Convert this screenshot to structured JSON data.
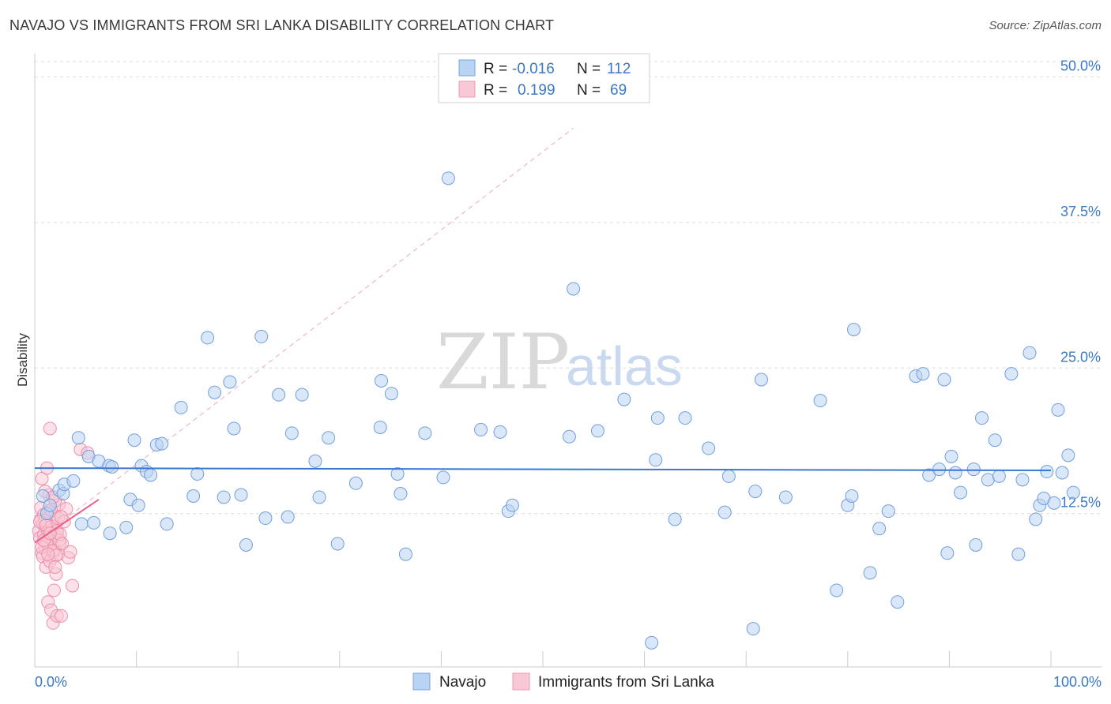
{
  "title": "NAVAJO VS IMMIGRANTS FROM SRI LANKA DISABILITY CORRELATION CHART",
  "source": "Source: ZipAtlas.com",
  "watermark": {
    "part1": "ZIP",
    "part2": "atlas"
  },
  "chart_data": {
    "type": "scatter",
    "title": "NAVAJO VS IMMIGRANTS FROM SRI LANKA DISABILITY CORRELATION CHART",
    "xlabel": "",
    "ylabel": "Disability",
    "xlim": [
      0,
      100
    ],
    "ylim": [
      0,
      52
    ],
    "x_tick_labels": [
      "0.0%",
      "100.0%"
    ],
    "y_ticks": [
      12.5,
      25.0,
      37.5,
      50.0
    ],
    "y_tick_labels": [
      "12.5%",
      "25.0%",
      "37.5%",
      "50.0%"
    ],
    "grid": true,
    "legend_position": "top-center",
    "colors": {
      "navajo": "#a8c8f0",
      "navajo_line": "#3a78d0",
      "srilanka": "#f5b7c8",
      "srilanka_line": "#e8628c",
      "tick_text": "#3b78c4"
    },
    "legend": [
      {
        "name": "Navajo",
        "r_label": "R = ",
        "r": "-0.016",
        "n_label": "N = ",
        "n": "112"
      },
      {
        "name": "Immigrants from Sri Lanka",
        "r_label": "R = ",
        "r": " 0.199",
        "n_label": "N = ",
        "n": "69"
      }
    ],
    "series": [
      {
        "name": "Navajo",
        "trend": {
          "x": [
            0,
            100
          ],
          "y": [
            16.4,
            16.2
          ]
        },
        "points": [
          [
            0.8,
            14.0
          ],
          [
            1.2,
            12.5
          ],
          [
            1.5,
            13.2
          ],
          [
            2.4,
            14.5
          ],
          [
            2.8,
            14.2
          ],
          [
            2.9,
            15.0
          ],
          [
            3.8,
            15.3
          ],
          [
            4.3,
            19.0
          ],
          [
            4.6,
            11.6
          ],
          [
            5.3,
            17.4
          ],
          [
            5.8,
            11.7
          ],
          [
            6.3,
            17.0
          ],
          [
            7.3,
            16.6
          ],
          [
            7.6,
            16.5
          ],
          [
            7.4,
            10.8
          ],
          [
            9.0,
            11.3
          ],
          [
            9.4,
            13.7
          ],
          [
            9.8,
            18.8
          ],
          [
            10.2,
            13.2
          ],
          [
            10.5,
            16.6
          ],
          [
            11.0,
            16.1
          ],
          [
            11.4,
            15.8
          ],
          [
            12.0,
            18.4
          ],
          [
            12.5,
            18.5
          ],
          [
            13.0,
            11.6
          ],
          [
            14.4,
            21.6
          ],
          [
            15.6,
            14.0
          ],
          [
            16.0,
            15.9
          ],
          [
            17.0,
            27.6
          ],
          [
            17.7,
            22.9
          ],
          [
            18.6,
            13.9
          ],
          [
            19.2,
            23.8
          ],
          [
            19.6,
            19.8
          ],
          [
            20.3,
            14.1
          ],
          [
            20.8,
            9.8
          ],
          [
            22.3,
            27.7
          ],
          [
            22.7,
            12.1
          ],
          [
            24.0,
            22.7
          ],
          [
            24.9,
            12.2
          ],
          [
            25.3,
            19.4
          ],
          [
            26.3,
            22.7
          ],
          [
            27.6,
            17.0
          ],
          [
            28.0,
            13.9
          ],
          [
            28.9,
            19.0
          ],
          [
            29.8,
            9.9
          ],
          [
            31.6,
            15.1
          ],
          [
            34.0,
            19.9
          ],
          [
            34.1,
            23.9
          ],
          [
            35.1,
            22.8
          ],
          [
            35.7,
            15.9
          ],
          [
            36.0,
            14.2
          ],
          [
            36.5,
            9.0
          ],
          [
            38.4,
            19.4
          ],
          [
            40.2,
            15.6
          ],
          [
            40.7,
            41.3
          ],
          [
            43.9,
            19.7
          ],
          [
            45.8,
            19.5
          ],
          [
            46.6,
            12.7
          ],
          [
            47.0,
            13.2
          ],
          [
            52.6,
            19.1
          ],
          [
            53.0,
            31.8
          ],
          [
            55.4,
            19.6
          ],
          [
            58.0,
            22.3
          ],
          [
            60.7,
            1.4
          ],
          [
            61.1,
            17.1
          ],
          [
            61.3,
            20.7
          ],
          [
            63.0,
            12.0
          ],
          [
            64.0,
            20.7
          ],
          [
            66.3,
            18.1
          ],
          [
            67.9,
            12.6
          ],
          [
            68.3,
            15.7
          ],
          [
            70.7,
            2.6
          ],
          [
            70.9,
            14.4
          ],
          [
            71.5,
            24.0
          ],
          [
            73.9,
            13.9
          ],
          [
            77.3,
            22.2
          ],
          [
            78.9,
            5.9
          ],
          [
            80.0,
            13.2
          ],
          [
            80.4,
            14.0
          ],
          [
            80.6,
            28.3
          ],
          [
            82.2,
            7.4
          ],
          [
            83.1,
            11.2
          ],
          [
            84.0,
            12.7
          ],
          [
            84.9,
            4.9
          ],
          [
            86.7,
            24.3
          ],
          [
            87.4,
            24.5
          ],
          [
            88.0,
            15.8
          ],
          [
            89.0,
            16.3
          ],
          [
            89.5,
            24.0
          ],
          [
            89.8,
            9.1
          ],
          [
            90.2,
            17.4
          ],
          [
            90.6,
            16.0
          ],
          [
            91.1,
            14.3
          ],
          [
            92.4,
            16.3
          ],
          [
            92.6,
            9.8
          ],
          [
            93.2,
            20.7
          ],
          [
            93.8,
            15.4
          ],
          [
            94.5,
            18.8
          ],
          [
            94.9,
            15.7
          ],
          [
            96.1,
            24.5
          ],
          [
            96.8,
            9.0
          ],
          [
            97.2,
            15.4
          ],
          [
            97.9,
            26.3
          ],
          [
            98.5,
            12.0
          ],
          [
            98.9,
            13.2
          ],
          [
            99.3,
            13.8
          ],
          [
            99.6,
            16.1
          ],
          [
            100.3,
            13.4
          ],
          [
            100.7,
            21.4
          ],
          [
            101.1,
            16.0
          ],
          [
            101.7,
            17.5
          ],
          [
            102.2,
            14.3
          ]
        ]
      },
      {
        "name": "Immigrants from Sri Lanka",
        "trend": {
          "x": [
            0,
            6.3
          ],
          "y": [
            10.0,
            13.7
          ]
        },
        "trend_extended": {
          "x": [
            0,
            53.0
          ],
          "y": [
            10.0,
            45.6
          ]
        },
        "points": [
          [
            0.4,
            11.0
          ],
          [
            0.5,
            10.4
          ],
          [
            0.6,
            12.0
          ],
          [
            0.7,
            9.1
          ],
          [
            0.8,
            11.6
          ],
          [
            0.9,
            10.7
          ],
          [
            1.0,
            9.6
          ],
          [
            1.1,
            10.1
          ],
          [
            1.2,
            11.3
          ],
          [
            1.3,
            12.7
          ],
          [
            1.4,
            9.8
          ],
          [
            1.5,
            10.5
          ],
          [
            1.6,
            11.1
          ],
          [
            1.7,
            8.7
          ],
          [
            1.8,
            10.3
          ],
          [
            1.9,
            12.2
          ],
          [
            2.0,
            9.4
          ],
          [
            2.1,
            11.7
          ],
          [
            2.2,
            10.8
          ],
          [
            2.3,
            9.0
          ],
          [
            2.4,
            13.3
          ],
          [
            2.5,
            10.0
          ],
          [
            0.6,
            13.0
          ],
          [
            0.8,
            8.8
          ],
          [
            0.9,
            12.4
          ],
          [
            1.0,
            11.9
          ],
          [
            1.1,
            7.9
          ],
          [
            1.2,
            9.9
          ],
          [
            1.3,
            10.9
          ],
          [
            1.4,
            14.1
          ],
          [
            1.5,
            8.4
          ],
          [
            1.6,
            12.8
          ],
          [
            1.7,
            11.4
          ],
          [
            1.8,
            9.3
          ],
          [
            1.9,
            10.6
          ],
          [
            2.0,
            13.6
          ],
          [
            2.1,
            8.9
          ],
          [
            2.2,
            11.0
          ],
          [
            2.3,
            12.1
          ],
          [
            2.4,
            10.2
          ],
          [
            0.7,
            15.5
          ],
          [
            1.0,
            14.4
          ],
          [
            1.2,
            16.4
          ],
          [
            1.5,
            19.8
          ],
          [
            1.8,
            13.9
          ],
          [
            2.1,
            7.3
          ],
          [
            2.5,
            10.7
          ],
          [
            2.7,
            9.9
          ],
          [
            2.9,
            11.8
          ],
          [
            3.1,
            12.9
          ],
          [
            3.3,
            8.7
          ],
          [
            3.5,
            9.2
          ],
          [
            3.7,
            6.3
          ],
          [
            1.3,
            4.9
          ],
          [
            1.6,
            4.2
          ],
          [
            1.8,
            3.1
          ],
          [
            2.2,
            3.7
          ],
          [
            2.6,
            3.7
          ],
          [
            1.9,
            5.9
          ],
          [
            4.5,
            18.0
          ],
          [
            5.2,
            17.7
          ],
          [
            0.5,
            11.8
          ],
          [
            0.7,
            9.6
          ],
          [
            0.9,
            10.2
          ],
          [
            1.1,
            11.5
          ],
          [
            1.3,
            9.0
          ],
          [
            1.5,
            10.8
          ],
          [
            2.0,
            7.9
          ],
          [
            2.6,
            12.2
          ]
        ]
      }
    ]
  }
}
